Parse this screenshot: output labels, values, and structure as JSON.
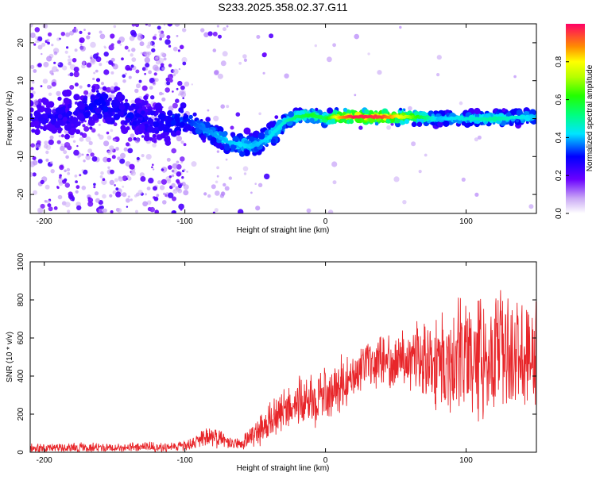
{
  "chart_data": [
    {
      "type": "heatmap",
      "title": "S233.2025.358.02.37.G11",
      "xlabel": "Height of straight line (km)",
      "ylabel": "Frequency (Hz)",
      "xlim": [
        -210,
        150
      ],
      "ylim": [
        -25,
        25
      ],
      "xticks": [
        -200,
        -100,
        0,
        100
      ],
      "yticks": [
        -20,
        -10,
        0,
        10,
        20
      ],
      "colorbar": {
        "label": "Normalized spectral amplitude",
        "range": [
          0,
          1
        ],
        "ticks": [
          0.0,
          0.2,
          0.4,
          0.6,
          0.8
        ]
      },
      "ridge": {
        "x": [
          -210,
          -180,
          -160,
          -140,
          -120,
          -100,
          -90,
          -80,
          -70,
          -60,
          -50,
          -40,
          -30,
          -20,
          -10,
          0,
          10,
          20,
          40,
          60,
          80,
          100,
          120,
          150
        ],
        "freq": [
          0,
          1,
          4,
          1,
          -1,
          0,
          -2,
          -4,
          -6,
          -7,
          -7,
          -5,
          -1,
          0.5,
          1,
          0,
          0.5,
          0.5,
          0.5,
          0.5,
          0,
          0,
          0,
          0.5
        ],
        "amplitude": [
          0.15,
          0.2,
          0.25,
          0.22,
          0.2,
          0.3,
          0.35,
          0.38,
          0.4,
          0.42,
          0.4,
          0.42,
          0.45,
          0.55,
          0.6,
          0.55,
          0.85,
          0.98,
          0.95,
          0.7,
          0.4,
          0.45,
          0.5,
          0.4
        ]
      }
    },
    {
      "type": "line",
      "xlabel": "Height of straight line (km)",
      "ylabel": "SNR (10 * v/v)",
      "xlim": [
        -210,
        150
      ],
      "ylim": [
        0,
        1000
      ],
      "xticks": [
        -200,
        -100,
        0,
        100
      ],
      "yticks": [
        0,
        200,
        400,
        600,
        800,
        1000
      ],
      "color": "#e8262a",
      "envelope": {
        "x": [
          -210,
          -150,
          -100,
          -90,
          -80,
          -70,
          -60,
          -50,
          -40,
          -30,
          -20,
          -10,
          0,
          10,
          20,
          40,
          60,
          80,
          100,
          120,
          150
        ],
        "mean": [
          20,
          25,
          30,
          60,
          90,
          50,
          40,
          100,
          150,
          220,
          260,
          270,
          300,
          350,
          420,
          480,
          500,
          480,
          500,
          520,
          520
        ],
        "spread": [
          25,
          25,
          25,
          40,
          70,
          30,
          30,
          70,
          100,
          110,
          120,
          130,
          150,
          140,
          110,
          120,
          150,
          250,
          300,
          300,
          280
        ]
      }
    }
  ]
}
